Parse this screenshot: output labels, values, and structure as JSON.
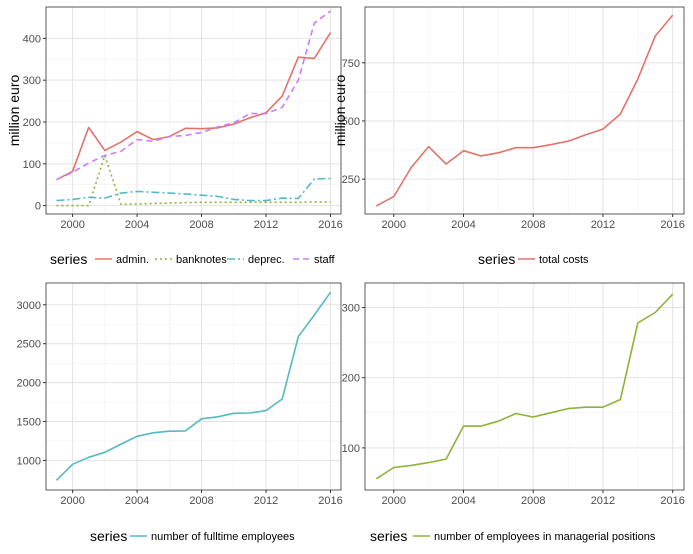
{
  "chart_data": [
    {
      "type": "line",
      "ylabel": "million euro",
      "xlim": [
        1998.35,
        2016.65
      ],
      "ylim": [
        -20,
        475
      ],
      "xticks": [
        2000,
        2004,
        2008,
        2012,
        2016
      ],
      "xtick_labels": [
        "2000",
        "2004",
        "2008",
        "2012",
        "2016"
      ],
      "yticks": [
        0,
        100,
        200,
        300,
        400
      ],
      "ytick_labels": [
        "0",
        "100",
        "200",
        "300",
        "400"
      ],
      "legend_title": "series",
      "series": [
        {
          "name": "admin.",
          "color": "#E0736B",
          "dash": "solid",
          "x": [
            1999,
            2000,
            2001,
            2002,
            2003,
            2004,
            2005,
            2006,
            2007,
            2008,
            2009,
            2010,
            2011,
            2012,
            2013,
            2014,
            2015,
            2016
          ],
          "y": [
            62,
            82,
            187,
            132,
            152,
            177,
            158,
            165,
            185,
            184,
            186,
            195,
            210,
            222,
            262,
            355,
            352,
            414
          ]
        },
        {
          "name": "banknotes",
          "color": "#8DB23A",
          "dash": "dotted",
          "x": [
            1999,
            2000,
            2001,
            2002,
            2003,
            2004,
            2005,
            2006,
            2007,
            2008,
            2009,
            2010,
            2011,
            2012,
            2013,
            2014,
            2015,
            2016
          ],
          "y": [
            0,
            0,
            0,
            120,
            3,
            4,
            5,
            6,
            7,
            8,
            8,
            8,
            8,
            8,
            8,
            8,
            9,
            9
          ]
        },
        {
          "name": "deprec.",
          "color": "#56B8C4",
          "dash": "dashdot",
          "x": [
            1999,
            2000,
            2001,
            2002,
            2003,
            2004,
            2005,
            2006,
            2007,
            2008,
            2009,
            2010,
            2011,
            2012,
            2013,
            2014,
            2015,
            2016
          ],
          "y": [
            12,
            15,
            20,
            18,
            30,
            34,
            32,
            30,
            28,
            25,
            22,
            15,
            12,
            12,
            18,
            17,
            64,
            65
          ]
        },
        {
          "name": "staff",
          "color": "#C77CFF",
          "dash": "dashed",
          "x": [
            1999,
            2000,
            2001,
            2002,
            2003,
            2004,
            2005,
            2006,
            2007,
            2008,
            2009,
            2010,
            2011,
            2012,
            2013,
            2014,
            2015,
            2016
          ],
          "y": [
            62,
            80,
            102,
            120,
            130,
            158,
            154,
            165,
            168,
            175,
            188,
            198,
            220,
            220,
            235,
            300,
            437,
            465
          ]
        }
      ]
    },
    {
      "type": "line",
      "ylabel": "million euro",
      "xlim": [
        1998.35,
        2016.65
      ],
      "ylim": [
        100,
        990
      ],
      "xticks": [
        2000,
        2004,
        2008,
        2012,
        2016
      ],
      "xtick_labels": [
        "2000",
        "2004",
        "2008",
        "2012",
        "2016"
      ],
      "yticks": [
        250,
        500,
        750
      ],
      "ytick_labels": [
        "250",
        "500",
        "750"
      ],
      "legend_title": "series",
      "series": [
        {
          "name": "total costs",
          "color": "#E0736B",
          "dash": "solid",
          "x": [
            1999,
            2000,
            2001,
            2002,
            2003,
            2004,
            2005,
            2006,
            2007,
            2008,
            2009,
            2010,
            2011,
            2012,
            2013,
            2014,
            2015,
            2016
          ],
          "y": [
            135,
            175,
            300,
            390,
            315,
            372,
            350,
            363,
            385,
            385,
            398,
            413,
            440,
            465,
            530,
            680,
            865,
            955
          ]
        }
      ]
    },
    {
      "type": "line",
      "ylabel": "",
      "xlim": [
        1998.35,
        2016.65
      ],
      "ylim": [
        620,
        3280
      ],
      "xticks": [
        2000,
        2004,
        2008,
        2012,
        2016
      ],
      "xtick_labels": [
        "2000",
        "2004",
        "2008",
        "2012",
        "2016"
      ],
      "yticks": [
        1000,
        1500,
        2000,
        2500,
        3000
      ],
      "ytick_labels": [
        "1000",
        "1500",
        "2000",
        "2500",
        "3000"
      ],
      "legend_title": "series",
      "series": [
        {
          "name": "number of fulltime employees",
          "color": "#56B8C4",
          "dash": "solid",
          "x": [
            1999,
            2000,
            2001,
            2002,
            2003,
            2004,
            2005,
            2006,
            2007,
            2008,
            2009,
            2010,
            2011,
            2012,
            2013,
            2014,
            2015,
            2016
          ],
          "y": [
            745,
            950,
            1040,
            1105,
            1210,
            1310,
            1355,
            1375,
            1380,
            1535,
            1560,
            1605,
            1610,
            1640,
            1790,
            2590,
            2870,
            3160
          ]
        }
      ]
    },
    {
      "type": "line",
      "ylabel": "",
      "xlim": [
        1998.35,
        2016.65
      ],
      "ylim": [
        40,
        335
      ],
      "xticks": [
        2000,
        2004,
        2008,
        2012,
        2016
      ],
      "xtick_labels": [
        "2000",
        "2004",
        "2008",
        "2012",
        "2016"
      ],
      "yticks": [
        100,
        200,
        300
      ],
      "ytick_labels": [
        "100",
        "200",
        "300"
      ],
      "legend_title": "series",
      "series": [
        {
          "name": "number of employees in managerial positions",
          "color": "#8DB23A",
          "dash": "solid",
          "x": [
            1999,
            2000,
            2001,
            2002,
            2003,
            2004,
            2005,
            2006,
            2007,
            2008,
            2009,
            2010,
            2011,
            2012,
            2013,
            2014,
            2015,
            2016
          ],
          "y": [
            56,
            72,
            75,
            79,
            84,
            131,
            131,
            138,
            149,
            144,
            150,
            156,
            158,
            158,
            169,
            278,
            293,
            319
          ]
        }
      ]
    }
  ]
}
